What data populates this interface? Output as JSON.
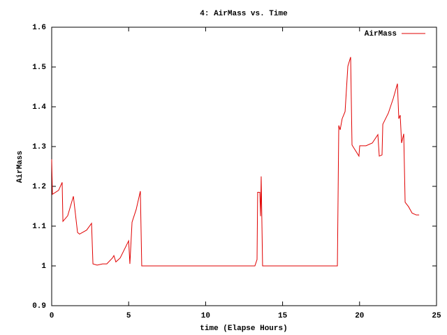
{
  "chart_data": {
    "type": "line",
    "title": "4: AirMass vs. Time",
    "x_label": "time (Elapse Hours)",
    "y_label": "AirMass",
    "xlim": [
      0,
      25
    ],
    "xticks": [
      0,
      5,
      10,
      15,
      20,
      25
    ],
    "ylim": [
      0.9,
      1.6
    ],
    "yticks": [
      0.9,
      1,
      1.1,
      1.2,
      1.3,
      1.4,
      1.5,
      1.6
    ],
    "grid": false,
    "legend": "top-right",
    "series": [
      {
        "name": "AirMass",
        "color": "#e00000",
        "x": [
          0,
          0.05,
          0.45,
          0.68,
          0.73,
          1.04,
          1.41,
          1.68,
          1.81,
          2.27,
          2.59,
          2.68,
          2.95,
          3.31,
          3.58,
          3.95,
          4.04,
          4.17,
          4.45,
          5.0,
          5.08,
          5.22,
          5.49,
          5.76,
          5.85,
          13.2,
          13.34,
          13.38,
          13.52,
          13.57,
          13.61,
          13.7,
          18.56,
          18.65,
          18.74,
          18.87,
          19.06,
          19.24,
          19.42,
          19.51,
          19.96,
          20.01,
          20.42,
          20.83,
          21.19,
          21.28,
          21.46,
          21.51,
          21.87,
          22.19,
          22.46,
          22.55,
          22.64,
          22.73,
          22.87,
          22.96,
          23.18,
          23.41,
          23.68,
          23.87
        ],
        "values": [
          1.268,
          1.18,
          1.19,
          1.21,
          1.112,
          1.126,
          1.175,
          1.084,
          1.08,
          1.09,
          1.107,
          1.005,
          1.002,
          1.005,
          1.005,
          1.02,
          1.026,
          1.01,
          1.02,
          1.063,
          1.005,
          1.11,
          1.142,
          1.188,
          1.0,
          1.0,
          1.016,
          1.185,
          1.185,
          1.125,
          1.225,
          1.0,
          1.0,
          1.353,
          1.342,
          1.37,
          1.388,
          1.502,
          1.525,
          1.304,
          1.276,
          1.302,
          1.302,
          1.309,
          1.33,
          1.276,
          1.279,
          1.356,
          1.384,
          1.421,
          1.458,
          1.37,
          1.379,
          1.309,
          1.332,
          1.16,
          1.149,
          1.133,
          1.128,
          1.128
        ]
      }
    ]
  }
}
